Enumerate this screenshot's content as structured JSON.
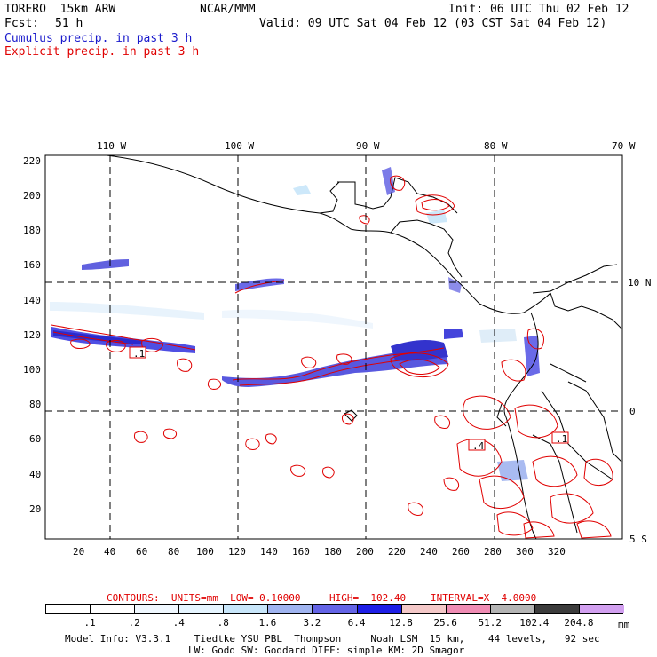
{
  "header": {
    "model": "TORERO  15km ARW",
    "org": "NCAR/MMM",
    "init": "Init: 06 UTC Thu 02 Feb 12",
    "fcst_label": "Fcst:",
    "fcst_hours": "51 h",
    "valid": "Valid: 09 UTC Sat 04 Feb 12 (03 CST Sat 04 Feb 12)",
    "cumulus_title": "Cumulus precip. in past 3 h",
    "explicit_title": "Explicit precip. in past 3 h"
  },
  "map": {
    "lon_labels": [
      "110 W",
      "100 W",
      "90 W",
      "80 W",
      "70 W"
    ],
    "lat_labels": [
      "10 N",
      "0",
      "5 S"
    ],
    "y_ticks": [
      "220",
      "200",
      "180",
      "160",
      "140",
      "120",
      "100",
      "80",
      "60",
      "40",
      "20"
    ],
    "x_ticks": [
      "20",
      "40",
      "60",
      "80",
      "100",
      "120",
      "140",
      "160",
      "180",
      "200",
      "220",
      "240",
      "260",
      "280",
      "300",
      "320"
    ],
    "contour_labels": [
      ".1",
      ".4",
      ".1"
    ]
  },
  "contour_info": {
    "label": "CONTOURS:  UNITS=mm  LOW= 0.10000",
    "high": "HIGH=  102.40",
    "interval": "INTERVAL=X  4.0000"
  },
  "legend": {
    "labels": [
      ".1",
      ".2",
      ".4",
      ".8",
      "1.6",
      "3.2",
      "6.4",
      "12.8",
      "25.6",
      "51.2",
      "102.4",
      "204.8"
    ],
    "unit": "mm",
    "colors": [
      "#ffffff",
      "#ffffff",
      "#f0f8ff",
      "#e6f5ff",
      "#c8e6fa",
      "#a0b4f0",
      "#6464e6",
      "#1e1ee6",
      "#f4c8c8",
      "#f08cb4",
      "#b4b4b4",
      "#3c3c3c",
      "#d2a0f0"
    ]
  },
  "footer": {
    "line1": "Model Info: V3.3.1    Tiedtke YSU PBL  Thompson     Noah LSM  15 km,    44 levels,   92 sec",
    "line2": "LW: Godd SW: Goddard DIFF: simple KM: 2D Smagor"
  }
}
